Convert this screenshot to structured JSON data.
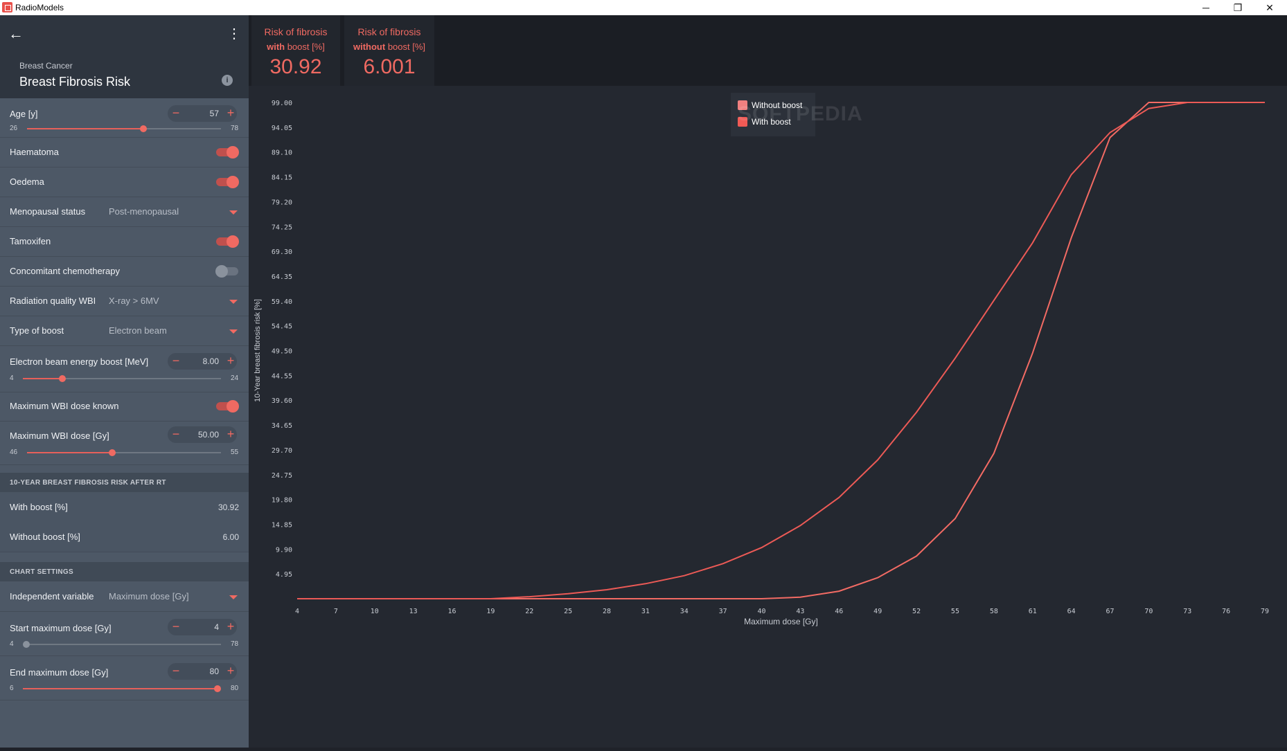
{
  "window": {
    "title": "RadioModels",
    "minimize": "─",
    "restore": "❐",
    "close": "✕"
  },
  "sidebar": {
    "subtitle": "Breast Cancer",
    "title": "Breast Fibrosis Risk",
    "info_icon": "i",
    "back_icon": "←",
    "more_icon": "⋮",
    "age": {
      "label": "Age [y]",
      "value": "57",
      "min": "26",
      "max": "78",
      "fraction": 0.6
    },
    "haematoma": {
      "label": "Haematoma",
      "on": true
    },
    "oedema": {
      "label": "Oedema",
      "on": true
    },
    "menopausal": {
      "label": "Menopausal status",
      "value": "Post-menopausal"
    },
    "tamoxifen": {
      "label": "Tamoxifen",
      "on": true
    },
    "chemo": {
      "label": "Concomitant chemotherapy",
      "on": false
    },
    "radiation_quality": {
      "label": "Radiation quality WBI",
      "value": "X-ray > 6MV"
    },
    "boost_type": {
      "label": "Type of boost",
      "value": "Electron beam"
    },
    "electron_energy": {
      "label": "Electron beam energy boost [MeV]",
      "value": "8.00",
      "min": "4",
      "max": "24",
      "fraction": 0.2
    },
    "max_wbi_known": {
      "label": "Maximum WBI dose known",
      "on": true
    },
    "max_wbi_dose": {
      "label": "Maximum WBI dose [Gy]",
      "value": "50.00",
      "min": "46",
      "max": "55",
      "fraction": 0.44
    },
    "results_section": "10-YEAR BREAST FIBROSIS RISK AFTER RT",
    "with_boost": {
      "label": "With boost [%]",
      "value": "30.92"
    },
    "without_boost": {
      "label": "Without boost [%]",
      "value": "6.00"
    },
    "chart_section": "CHART SETTINGS",
    "independent_var": {
      "label": "Independent variable",
      "value": "Maximum dose [Gy]"
    },
    "start_dose": {
      "label": "Start maximum dose [Gy]",
      "value": "4",
      "min": "4",
      "max": "78",
      "fraction": 0.0
    },
    "end_dose": {
      "label": "End maximum dose [Gy]",
      "value": "80",
      "min": "6",
      "max": "80",
      "fraction": 1.0
    }
  },
  "cards": {
    "with": {
      "line1": "Risk of fibrosis",
      "bold": "with",
      "rest": " boost [%]",
      "value": "30.92"
    },
    "without": {
      "line1": "Risk of fibrosis",
      "bold": "without",
      "rest": " boost [%]",
      "value": "6.001"
    }
  },
  "watermark": "SOFTPEDIA",
  "colors": {
    "accent": "#f06a62",
    "with_boost": "#f36b64",
    "without_boost": "#f36b64"
  },
  "chart_data": {
    "type": "line",
    "xlabel": "Maximum dose [Gy]",
    "ylabel": "10-Year breast fibrosis risk [%]",
    "xlim": [
      4,
      79
    ],
    "ylim": [
      0,
      99
    ],
    "xticks": [
      "4",
      "7",
      "10",
      "13",
      "16",
      "19",
      "22",
      "25",
      "28",
      "31",
      "34",
      "37",
      "40",
      "43",
      "46",
      "49",
      "52",
      "55",
      "58",
      "61",
      "64",
      "67",
      "70",
      "73",
      "76",
      "79"
    ],
    "yticks": [
      "99.00",
      "94.05",
      "89.10",
      "84.15",
      "79.20",
      "74.25",
      "69.30",
      "64.35",
      "59.40",
      "54.45",
      "49.50",
      "44.55",
      "39.60",
      "34.65",
      "29.70",
      "24.75",
      "19.80",
      "14.85",
      "9.90",
      "4.95"
    ],
    "legend_position": "top-center",
    "series": [
      {
        "name": "Without boost",
        "x": [
          4,
          19,
          40,
          43,
          46,
          49,
          52,
          55,
          58,
          61,
          64,
          67,
          70,
          73,
          79
        ],
        "y": [
          0,
          0,
          0,
          0.3,
          1.5,
          4.2,
          8.5,
          16,
          29,
          49,
          72,
          92,
          99,
          99,
          99
        ]
      },
      {
        "name": "With boost",
        "x": [
          4,
          19,
          22,
          25,
          28,
          31,
          34,
          37,
          40,
          43,
          46,
          49,
          52,
          55,
          58,
          61,
          64,
          67,
          70,
          73,
          79
        ],
        "y": [
          0,
          0,
          0.4,
          1,
          1.8,
          3,
          4.6,
          7,
          10.2,
          14.6,
          20.2,
          27.7,
          37.2,
          48,
          59.5,
          71,
          84.6,
          93,
          97.8,
          99,
          99
        ]
      }
    ]
  }
}
